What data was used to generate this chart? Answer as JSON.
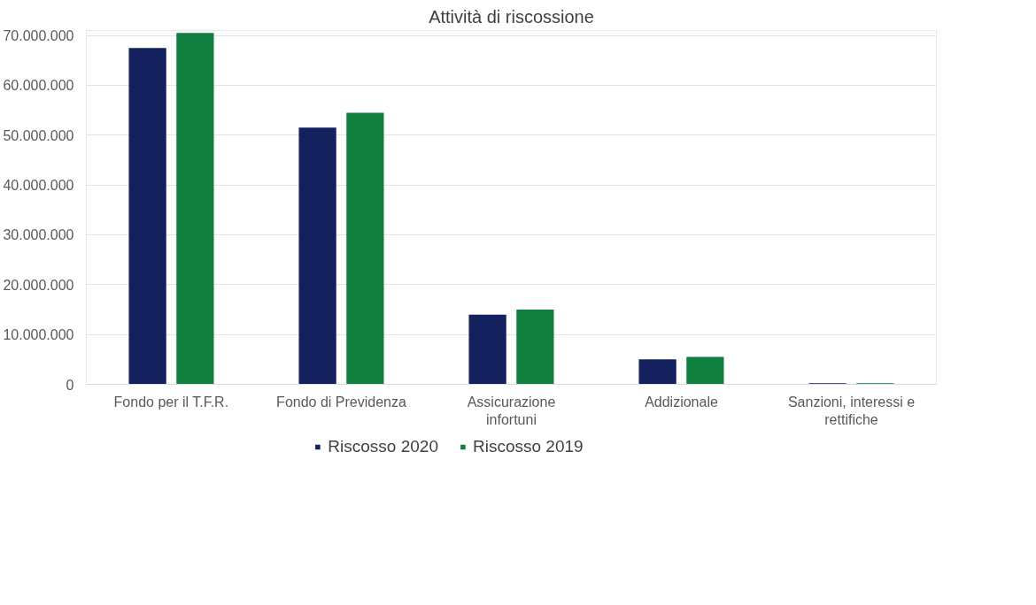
{
  "chart_data": {
    "type": "bar",
    "title": "Attività di riscossione",
    "categories": [
      "Fondo per il T.F.R.",
      "Fondo di Previdenza",
      "Assicurazione\ninfortuni",
      "Addizionale",
      "Sanzioni, interessi e\nrettifiche"
    ],
    "series": [
      {
        "name": "Riscosso 2020",
        "color": "#13225f",
        "values": [
          67500000,
          51500000,
          14000000,
          5000000,
          200000
        ]
      },
      {
        "name": "Riscosso 2019",
        "color": "#117f3f",
        "values": [
          70500000,
          54500000,
          15000000,
          5500000,
          200000
        ]
      }
    ],
    "ylim": [
      0,
      71000000
    ],
    "yticks": [
      {
        "value": 0,
        "label": "0"
      },
      {
        "value": 10000000,
        "label": "10.000.000"
      },
      {
        "value": 20000000,
        "label": "20.000.000"
      },
      {
        "value": 30000000,
        "label": "30.000.000"
      },
      {
        "value": 40000000,
        "label": "40.000.000"
      },
      {
        "value": 50000000,
        "label": "50.000.000"
      },
      {
        "value": 60000000,
        "label": "60.000.000"
      },
      {
        "value": 70000000,
        "label": "70.000.000"
      }
    ],
    "grid": "y",
    "legend": "bottom"
  }
}
